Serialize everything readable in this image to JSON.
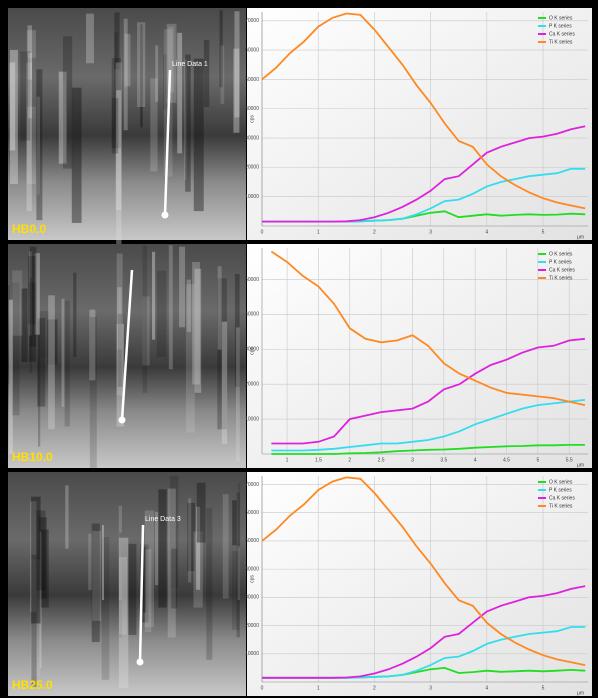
{
  "chart_data": [
    {
      "type": "line",
      "panel_label": "HB0.0",
      "image_annotation": "Line Data 1",
      "y_label": "cps",
      "x_label": "µm",
      "x": [
        0,
        0.25,
        0.5,
        0.75,
        1,
        1.25,
        1.5,
        1.75,
        2,
        2.25,
        2.5,
        2.75,
        3,
        3.25,
        3.5,
        3.75,
        4,
        4.25,
        4.5,
        4.75,
        5,
        5.25,
        5.5,
        5.75
      ],
      "xlim": [
        0,
        5.8
      ],
      "xticks": [
        0,
        1,
        2,
        3,
        4,
        5
      ],
      "ylim": [
        0,
        73000
      ],
      "yticks": [
        10000,
        20000,
        30000,
        40000,
        50000,
        60000,
        70000
      ],
      "grid": true,
      "legend": "upper right",
      "series": [
        {
          "name": "O K series",
          "color": "#22dd22",
          "values": [
            1500,
            1500,
            1500,
            1500,
            1500,
            1500,
            1500,
            1600,
            1800,
            2000,
            2500,
            3500,
            4500,
            5000,
            3000,
            3500,
            4000,
            3500,
            3800,
            4000,
            3800,
            3900,
            4200,
            4000
          ]
        },
        {
          "name": "P K series",
          "color": "#33ddee",
          "values": [
            1500,
            1500,
            1500,
            1500,
            1500,
            1500,
            1500,
            1600,
            1800,
            2000,
            2500,
            4000,
            6000,
            8500,
            9000,
            11000,
            13500,
            15000,
            16000,
            17000,
            17500,
            18000,
            19500,
            19500
          ]
        },
        {
          "name": "Ca K series",
          "color": "#dd22dd",
          "values": [
            1500,
            1500,
            1500,
            1500,
            1500,
            1500,
            1600,
            2000,
            3000,
            4500,
            6500,
            9000,
            12000,
            16000,
            17000,
            21000,
            25000,
            27000,
            28500,
            30000,
            30500,
            31500,
            33000,
            34000
          ]
        },
        {
          "name": "Ti K series",
          "color": "#ff8820",
          "values": [
            50000,
            54000,
            59000,
            63000,
            68000,
            71000,
            72500,
            72000,
            67000,
            61000,
            55000,
            48000,
            42000,
            35000,
            29000,
            27000,
            21000,
            17000,
            14000,
            11500,
            9500,
            8000,
            7000,
            6000
          ]
        }
      ]
    },
    {
      "type": "line",
      "panel_label": "HB10.0",
      "y_label": "cps",
      "x_label": "µm",
      "x": [
        0.75,
        1,
        1.25,
        1.5,
        1.75,
        2,
        2.25,
        2.5,
        2.75,
        3,
        3.25,
        3.5,
        3.75,
        4,
        4.25,
        4.5,
        4.75,
        5,
        5.25,
        5.5,
        5.75
      ],
      "xlim": [
        0.6,
        5.8
      ],
      "xticks": [
        1,
        1.5,
        2,
        2.5,
        3,
        3.5,
        4,
        4.5,
        5,
        5.5
      ],
      "ylim": [
        0,
        59000
      ],
      "yticks": [
        10000,
        20000,
        30000,
        40000,
        50000
      ],
      "grid": true,
      "legend": "upper right",
      "series": [
        {
          "name": "O K series",
          "color": "#22dd22",
          "values": [
            0,
            0,
            0,
            0,
            0,
            200,
            300,
            500,
            800,
            1000,
            1200,
            1300,
            1500,
            1800,
            2000,
            2200,
            2300,
            2500,
            2500,
            2600,
            2600
          ]
        },
        {
          "name": "P K series",
          "color": "#33ddee",
          "values": [
            1000,
            1000,
            1000,
            1200,
            1500,
            2000,
            2500,
            3000,
            3000,
            3500,
            4000,
            5000,
            6500,
            8500,
            10000,
            11500,
            13000,
            14000,
            14500,
            15000,
            15500
          ]
        },
        {
          "name": "Ca K series",
          "color": "#dd22dd",
          "values": [
            3000,
            3000,
            3000,
            3500,
            5000,
            10000,
            11000,
            12000,
            12500,
            13000,
            15000,
            18500,
            20000,
            23000,
            25500,
            27000,
            29000,
            30500,
            31000,
            32500,
            33000
          ]
        },
        {
          "name": "Ti K series",
          "color": "#ff8820",
          "values": [
            58000,
            55000,
            51000,
            48000,
            43000,
            36000,
            33000,
            32000,
            32500,
            34000,
            31000,
            26000,
            23000,
            21000,
            19000,
            17500,
            17000,
            16500,
            16000,
            15000,
            14000
          ]
        }
      ]
    },
    {
      "type": "line",
      "panel_label": "HB25.0",
      "image_annotation": "Line Data 3",
      "y_label": "cps",
      "x_label": "µm",
      "x": [
        0,
        0.25,
        0.5,
        0.75,
        1,
        1.25,
        1.5,
        1.75,
        2,
        2.25,
        2.5,
        2.75,
        3,
        3.25,
        3.5,
        3.75,
        4,
        4.25,
        4.5,
        4.75,
        5,
        5.25,
        5.5,
        5.75
      ],
      "xlim": [
        0,
        5.8
      ],
      "xticks": [
        0,
        1,
        2,
        3,
        4,
        5
      ],
      "ylim": [
        0,
        73000
      ],
      "yticks": [
        10000,
        20000,
        30000,
        40000,
        50000,
        60000,
        70000
      ],
      "grid": true,
      "legend": "upper right",
      "series": [
        {
          "name": "O K series",
          "color": "#22dd22",
          "values": [
            1500,
            1500,
            1500,
            1500,
            1500,
            1500,
            1500,
            1600,
            1800,
            2000,
            2500,
            3500,
            4500,
            5000,
            3200,
            3500,
            4000,
            3600,
            3800,
            4000,
            3800,
            4000,
            4300,
            4000
          ]
        },
        {
          "name": "P K series",
          "color": "#33ddee",
          "values": [
            1500,
            1500,
            1500,
            1500,
            1500,
            1500,
            1500,
            1600,
            1800,
            2000,
            2500,
            4000,
            6000,
            8500,
            9000,
            11000,
            13500,
            15000,
            16000,
            17000,
            17500,
            18000,
            19500,
            19500
          ]
        },
        {
          "name": "Ca K series",
          "color": "#dd22dd",
          "values": [
            1500,
            1500,
            1500,
            1500,
            1500,
            1500,
            1600,
            2000,
            3000,
            4500,
            6500,
            9000,
            12000,
            16000,
            17000,
            21000,
            25000,
            27000,
            28500,
            30000,
            30500,
            31500,
            33000,
            34000
          ]
        },
        {
          "name": "Ti K series",
          "color": "#ff8820",
          "values": [
            50000,
            54000,
            59000,
            63000,
            68000,
            71000,
            72500,
            72000,
            67000,
            61000,
            55000,
            48000,
            42000,
            35000,
            29000,
            27000,
            21000,
            17000,
            14000,
            11500,
            9500,
            8000,
            7000,
            6000
          ]
        }
      ]
    }
  ]
}
